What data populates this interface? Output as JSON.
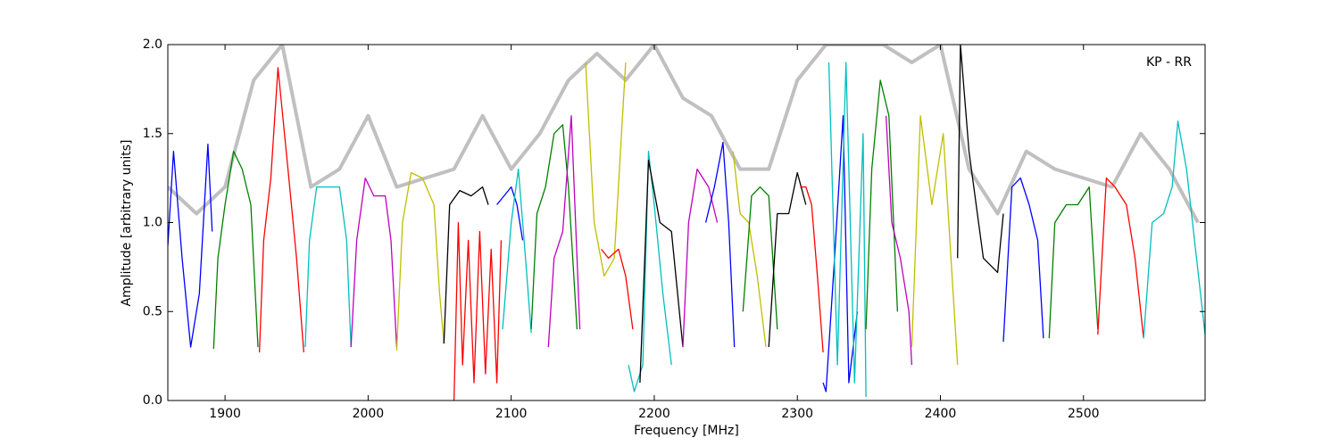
{
  "chart_data": {
    "type": "line",
    "annotation": "KP - RR",
    "xlabel": "Frequency [MHz]",
    "ylabel": "Amplitude [arbitrary units]",
    "xlim": [
      1860,
      2585
    ],
    "ylim": [
      0,
      2
    ],
    "xticks": [
      1900,
      2000,
      2100,
      2200,
      2300,
      2400,
      2500
    ],
    "yticks": [
      {
        "value": 0,
        "label": "0.0"
      },
      0.5,
      {
        "value": 1,
        "label": "1.0"
      },
      1.5,
      {
        "value": 2,
        "label": "2.0"
      }
    ],
    "series": [
      {
        "color": "#c0c0c0",
        "x": [
          1860,
          1880,
          1900,
          1920,
          1940,
          1960,
          1980,
          2000,
          2020,
          2040,
          2060,
          2080,
          2100,
          2120,
          2140,
          2160,
          2180,
          2200,
          2220,
          2240,
          2260,
          2280,
          2300,
          2320,
          2340,
          2360,
          2380,
          2400,
          2420,
          2440,
          2460,
          2480,
          2500,
          2520,
          2540,
          2560,
          2580
        ],
        "values": [
          1.2,
          1.05,
          1.2,
          1.8,
          2.0,
          1.2,
          1.3,
          1.6,
          1.2,
          1.25,
          1.3,
          1.6,
          1.3,
          1.5,
          1.8,
          1.95,
          1.8,
          2.0,
          1.7,
          1.6,
          1.3,
          1.3,
          1.8,
          2.0,
          2.0,
          2.0,
          1.9,
          2.0,
          1.3,
          1.05,
          1.4,
          1.3,
          1.25,
          1.2,
          1.5,
          1.3,
          1.0
        ]
      },
      {
        "color": "#0000ff",
        "x": [
          1860,
          1864,
          1870,
          1876,
          1882,
          1888,
          1891
        ],
        "values": [
          0.87,
          1.4,
          0.8,
          0.3,
          0.6,
          1.44,
          0.95
        ]
      },
      {
        "color": "#008000",
        "x": [
          1892,
          1895,
          1900,
          1906,
          1912,
          1918,
          1923
        ],
        "values": [
          0.29,
          0.8,
          1.1,
          1.4,
          1.3,
          1.1,
          0.3
        ]
      },
      {
        "color": "#ff0000",
        "x": [
          1924,
          1927,
          1932,
          1937,
          1944,
          1950,
          1955
        ],
        "values": [
          0.27,
          0.9,
          1.25,
          1.87,
          1.3,
          0.8,
          0.27
        ]
      },
      {
        "color": "#00bfbf",
        "x": [
          1956,
          1959,
          1964,
          1972,
          1980,
          1985,
          1988
        ],
        "values": [
          0.3,
          0.9,
          1.2,
          1.2,
          1.2,
          0.9,
          0.3
        ]
      },
      {
        "color": "#bf00bf",
        "x": [
          1988,
          1992,
          1998,
          2004,
          2012,
          2016,
          2020
        ],
        "values": [
          0.3,
          0.9,
          1.25,
          1.15,
          1.15,
          0.9,
          0.3
        ]
      },
      {
        "color": "#bfbf00",
        "x": [
          2020,
          2024,
          2030,
          2038,
          2046,
          2050,
          2053
        ],
        "values": [
          0.28,
          1.0,
          1.28,
          1.25,
          1.1,
          0.6,
          0.32
        ]
      },
      {
        "color": "#000000",
        "x": [
          2053,
          2057,
          2064,
          2072,
          2080,
          2084
        ],
        "values": [
          0.32,
          1.1,
          1.18,
          1.15,
          1.2,
          1.1
        ]
      },
      {
        "color": "#ff0000",
        "x": [
          2060,
          2063,
          2066,
          2070,
          2074,
          2078,
          2082,
          2086,
          2090,
          2093
        ],
        "values": [
          0.0,
          1.0,
          0.2,
          0.9,
          0.1,
          0.95,
          0.15,
          0.85,
          0.1,
          0.9
        ]
      },
      {
        "color": "#0000ff",
        "x": [
          2090,
          2095,
          2100,
          2104,
          2108
        ],
        "values": [
          1.1,
          1.15,
          1.2,
          1.1,
          0.9
        ]
      },
      {
        "color": "#00bfbf",
        "x": [
          2094,
          2100,
          2105,
          2110,
          2114
        ],
        "values": [
          0.4,
          1.0,
          1.3,
          0.8,
          0.38
        ]
      },
      {
        "color": "#008000",
        "x": [
          2114,
          2118,
          2124,
          2130,
          2136,
          2140,
          2146
        ],
        "values": [
          0.4,
          1.05,
          1.2,
          1.5,
          1.55,
          1.2,
          0.4
        ]
      },
      {
        "color": "#bf00bf",
        "x": [
          2126,
          2130,
          2136,
          2142,
          2148
        ],
        "values": [
          0.3,
          0.8,
          0.95,
          1.6,
          0.4
        ]
      },
      {
        "color": "#bfbf00",
        "x": [
          2152,
          2158,
          2165,
          2172,
          2180
        ],
        "values": [
          1.9,
          1.0,
          0.7,
          0.8,
          1.9
        ]
      },
      {
        "color": "#ff0000",
        "x": [
          2163,
          2168,
          2175,
          2180,
          2185
        ],
        "values": [
          0.85,
          0.8,
          0.85,
          0.7,
          0.4
        ]
      },
      {
        "color": "#00bfbf",
        "x": [
          2182,
          2186,
          2192,
          2196,
          2200,
          2206,
          2212
        ],
        "values": [
          0.2,
          0.05,
          0.2,
          1.4,
          1.1,
          0.6,
          0.2
        ]
      },
      {
        "color": "#000000",
        "x": [
          2190,
          2196,
          2204,
          2212,
          2220
        ],
        "values": [
          0.1,
          1.35,
          1.0,
          0.95,
          0.3
        ]
      },
      {
        "color": "#bf00bf",
        "x": [
          2220,
          2224,
          2230,
          2238,
          2244
        ],
        "values": [
          0.3,
          1.0,
          1.3,
          1.2,
          1.0
        ]
      },
      {
        "color": "#0000ff",
        "x": [
          2236,
          2242,
          2248,
          2252,
          2256
        ],
        "values": [
          1.0,
          1.2,
          1.45,
          1.0,
          0.3
        ]
      },
      {
        "color": "#bfbf00",
        "x": [
          2255,
          2260,
          2266,
          2272,
          2278
        ],
        "values": [
          1.4,
          1.05,
          1.0,
          0.7,
          0.3
        ]
      },
      {
        "color": "#008000",
        "x": [
          2262,
          2268,
          2274,
          2280,
          2286
        ],
        "values": [
          0.5,
          1.15,
          1.2,
          1.15,
          0.4
        ]
      },
      {
        "color": "#000000",
        "x": [
          2280,
          2286,
          2294,
          2300,
          2306
        ],
        "values": [
          0.3,
          1.05,
          1.05,
          1.28,
          1.1
        ]
      },
      {
        "color": "#ff0000",
        "x": [
          2302,
          2306,
          2310,
          2314,
          2318
        ],
        "values": [
          1.2,
          1.2,
          1.1,
          0.7,
          0.27
        ]
      },
      {
        "color": "#0000ff",
        "x": [
          2318,
          2320,
          2326,
          2332,
          2336,
          2342
        ],
        "values": [
          0.1,
          0.05,
          0.8,
          1.6,
          0.1,
          0.5
        ]
      },
      {
        "color": "#00bfbf",
        "x": [
          2322,
          2328,
          2334,
          2340,
          2346,
          2348
        ],
        "values": [
          1.9,
          0.2,
          1.9,
          0.1,
          1.5,
          0.02
        ]
      },
      {
        "color": "#008000",
        "x": [
          2348,
          2352,
          2358,
          2364,
          2370
        ],
        "values": [
          0.4,
          1.3,
          1.8,
          1.6,
          0.5
        ]
      },
      {
        "color": "#bf00bf",
        "x": [
          2362,
          2366,
          2372,
          2378,
          2380
        ],
        "values": [
          1.6,
          1.0,
          0.8,
          0.5,
          0.2
        ]
      },
      {
        "color": "#bfbf00",
        "x": [
          2380,
          2386,
          2394,
          2402,
          2412
        ],
        "values": [
          0.3,
          1.6,
          1.1,
          1.5,
          0.2
        ]
      },
      {
        "color": "#000000",
        "x": [
          2412,
          2414,
          2420,
          2430,
          2440,
          2444
        ],
        "values": [
          0.8,
          2.0,
          1.4,
          0.8,
          0.72,
          1.05
        ]
      },
      {
        "color": "#0000ff",
        "x": [
          2444,
          2450,
          2456,
          2462,
          2468,
          2472
        ],
        "values": [
          0.33,
          1.2,
          1.25,
          1.1,
          0.9,
          0.35
        ]
      },
      {
        "color": "#008000",
        "x": [
          2476,
          2480,
          2488,
          2496,
          2504,
          2510
        ],
        "values": [
          0.35,
          1.0,
          1.1,
          1.1,
          1.2,
          0.4
        ]
      },
      {
        "color": "#ff0000",
        "x": [
          2510,
          2516,
          2522,
          2530,
          2536,
          2542
        ],
        "values": [
          0.37,
          1.25,
          1.2,
          1.1,
          0.8,
          0.35
        ]
      },
      {
        "color": "#00bfbf",
        "x": [
          2542,
          2548,
          2556,
          2562,
          2566,
          2572,
          2585
        ],
        "values": [
          0.35,
          1.0,
          1.05,
          1.2,
          1.57,
          1.3,
          0.37
        ]
      }
    ]
  }
}
